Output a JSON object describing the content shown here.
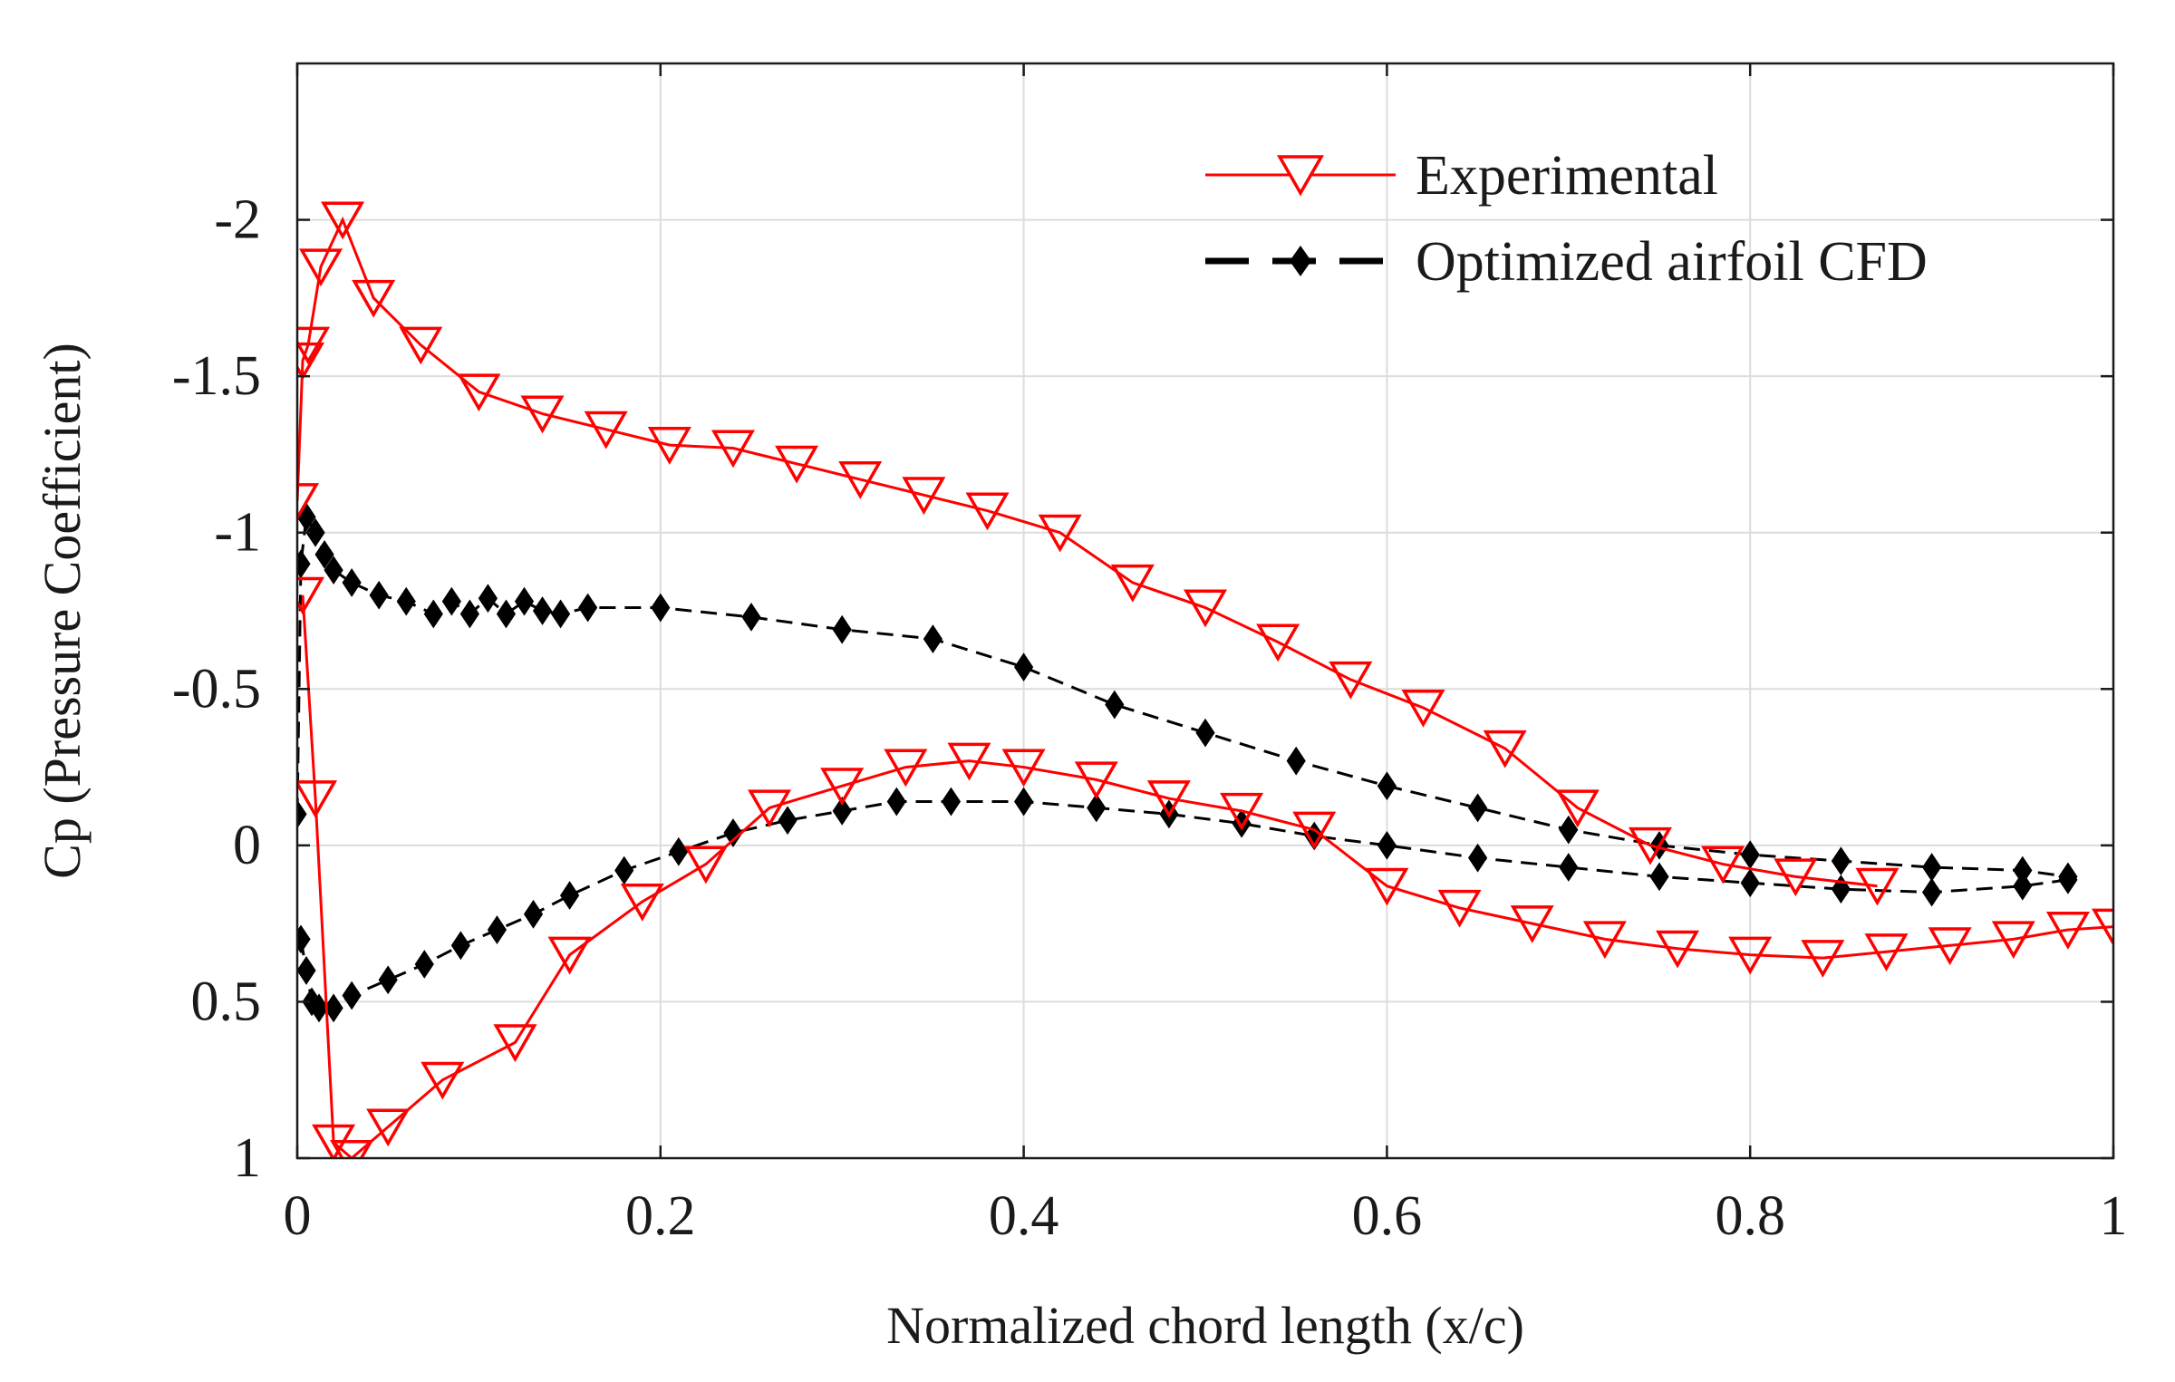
{
  "chart_data": {
    "type": "line",
    "title": "",
    "xlabel": "Normalized chord length (x/c)",
    "ylabel": "Cp (Pressure Coefficient)",
    "xlim": [
      0,
      1
    ],
    "ylim": [
      1,
      -2.5
    ],
    "y_reversed": true,
    "grid": true,
    "legend_position": "top-right",
    "x_ticks": [
      0,
      0.2,
      0.4,
      0.6,
      0.8,
      1
    ],
    "x_tick_labels": [
      "0",
      "0.2",
      "0.4",
      "0.6",
      "0.8",
      "1"
    ],
    "y_ticks": [
      -2,
      -1.5,
      -1,
      -0.5,
      0,
      0.5,
      1
    ],
    "y_tick_labels": [
      "-2",
      "-1.5",
      "-1",
      "-0.5",
      "0",
      "0.5",
      "1"
    ],
    "series": [
      {
        "name": "Experimental",
        "color": "#ff0000",
        "line_style": "solid",
        "marker": "triangle-down-open",
        "upper_surface": {
          "x": [
            0,
            0.003,
            0.006,
            0.013,
            0.025,
            0.042,
            0.068,
            0.1,
            0.135,
            0.17,
            0.205,
            0.24,
            0.275,
            0.31,
            0.345,
            0.38,
            0.42,
            0.46,
            0.5,
            0.54,
            0.58,
            0.62,
            0.665,
            0.705,
            0.745,
            0.785,
            0.825,
            0.87
          ],
          "y": [
            -1.1,
            -1.55,
            -1.6,
            -1.85,
            -2.0,
            -1.75,
            -1.6,
            -1.45,
            -1.38,
            -1.33,
            -1.28,
            -1.27,
            -1.22,
            -1.17,
            -1.12,
            -1.07,
            -1.0,
            -0.84,
            -0.76,
            -0.65,
            -0.53,
            -0.44,
            -0.31,
            -0.12,
            0.0,
            0.06,
            0.1,
            0.13
          ]
        },
        "lower_surface": {
          "x": [
            0.003,
            0.01,
            0.02,
            0.03,
            0.05,
            0.08,
            0.12,
            0.15,
            0.19,
            0.225,
            0.26,
            0.3,
            0.335,
            0.37,
            0.4,
            0.44,
            0.48,
            0.52,
            0.56,
            0.6,
            0.64,
            0.68,
            0.72,
            0.76,
            0.8,
            0.84,
            0.875,
            0.91,
            0.945,
            0.975,
            1.0
          ],
          "y": [
            -0.8,
            -0.15,
            0.95,
            1.0,
            0.9,
            0.75,
            0.63,
            0.35,
            0.18,
            0.06,
            -0.12,
            -0.19,
            -0.25,
            -0.27,
            -0.25,
            -0.21,
            -0.15,
            -0.11,
            -0.05,
            0.13,
            0.2,
            0.25,
            0.3,
            0.33,
            0.35,
            0.36,
            0.34,
            0.32,
            0.3,
            0.27,
            0.26
          ]
        }
      },
      {
        "name": "Optimized airfoil CFD",
        "color": "#000000",
        "line_style": "dashed",
        "marker": "diamond-filled",
        "upper_surface": {
          "x": [
            0,
            0.002,
            0.005,
            0.01,
            0.015,
            0.02,
            0.03,
            0.045,
            0.06,
            0.075,
            0.085,
            0.095,
            0.105,
            0.115,
            0.125,
            0.135,
            0.145,
            0.16,
            0.2,
            0.25,
            0.3,
            0.35,
            0.4,
            0.45,
            0.5,
            0.55,
            0.6,
            0.65,
            0.7,
            0.75,
            0.8,
            0.85,
            0.9,
            0.95,
            0.975
          ],
          "y": [
            -0.1,
            -0.9,
            -1.05,
            -1.0,
            -0.93,
            -0.88,
            -0.84,
            -0.8,
            -0.78,
            -0.74,
            -0.78,
            -0.74,
            -0.79,
            -0.74,
            -0.78,
            -0.75,
            -0.74,
            -0.76,
            -0.76,
            -0.73,
            -0.69,
            -0.66,
            -0.57,
            -0.45,
            -0.36,
            -0.27,
            -0.19,
            -0.12,
            -0.05,
            0.0,
            0.03,
            0.05,
            0.07,
            0.08,
            0.1
          ]
        },
        "lower_surface": {
          "x": [
            0.002,
            0.005,
            0.008,
            0.012,
            0.02,
            0.03,
            0.05,
            0.07,
            0.09,
            0.11,
            0.13,
            0.15,
            0.18,
            0.21,
            0.24,
            0.27,
            0.3,
            0.33,
            0.36,
            0.4,
            0.44,
            0.48,
            0.52,
            0.56,
            0.6,
            0.65,
            0.7,
            0.75,
            0.8,
            0.85,
            0.9,
            0.95,
            0.975
          ],
          "y": [
            0.3,
            0.4,
            0.5,
            0.52,
            0.52,
            0.48,
            0.43,
            0.38,
            0.32,
            0.27,
            0.22,
            0.16,
            0.08,
            0.02,
            -0.04,
            -0.08,
            -0.11,
            -0.14,
            -0.14,
            -0.14,
            -0.12,
            -0.1,
            -0.07,
            -0.03,
            0.0,
            0.04,
            0.07,
            0.1,
            0.12,
            0.14,
            0.15,
            0.13,
            0.11
          ]
        }
      }
    ]
  }
}
